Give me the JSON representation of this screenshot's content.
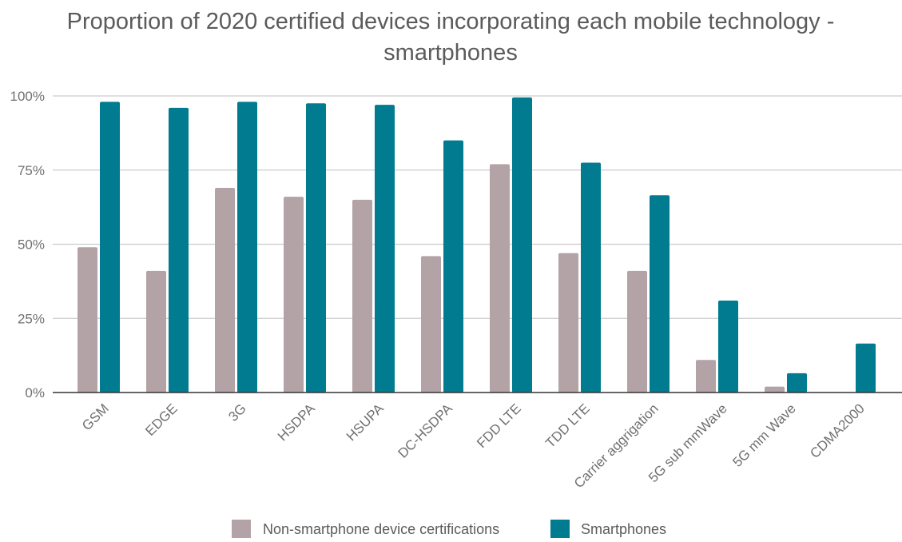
{
  "chart_data": {
    "type": "bar",
    "title": "Proportion of 2020 certified devices incorporating each mobile technology - smartphones",
    "title_lines": [
      "Proportion of 2020 certified devices incorporating each mobile technology -",
      "smartphones"
    ],
    "xlabel": "",
    "ylabel": "",
    "categories": [
      "GSM",
      "EDGE",
      "3G",
      "HSDPA",
      "HSUPA",
      "DC-HSDPA",
      "FDD LTE",
      "TDD LTE",
      "Carrier aggrigation",
      "5G sub mmWave",
      "5G mm Wave",
      "CDMA2000"
    ],
    "series": [
      {
        "name": "Non-smartphone device certifications",
        "color": "#b3a3a6",
        "values": [
          0.49,
          0.41,
          0.69,
          0.66,
          0.65,
          0.46,
          0.77,
          0.47,
          0.41,
          0.11,
          0.02,
          0.0
        ]
      },
      {
        "name": "Smartphones",
        "color": "#007b8f",
        "values": [
          0.98,
          0.96,
          0.98,
          0.975,
          0.97,
          0.85,
          0.995,
          0.775,
          0.665,
          0.31,
          0.065,
          0.165
        ]
      }
    ],
    "ylim": [
      0,
      1
    ],
    "yticks": [
      {
        "value": 0,
        "label": "0%"
      },
      {
        "value": 0.25,
        "label": "25%"
      },
      {
        "value": 0.5,
        "label": "50%"
      },
      {
        "value": 0.75,
        "label": "75%"
      },
      {
        "value": 1,
        "label": "100%"
      }
    ],
    "grid": true,
    "legend_position": "bottom-center",
    "colors": {
      "title": "#5b5b5b",
      "tick_label": "#707070",
      "grid": "#cccccc",
      "baseline": "#333333",
      "legend_text": "#5b5b5b"
    }
  }
}
